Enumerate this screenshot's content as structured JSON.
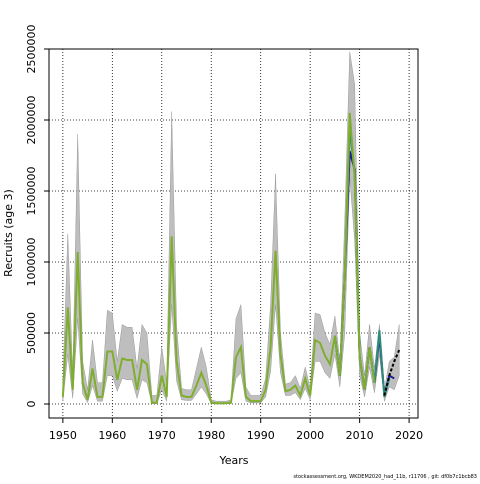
{
  "chart_data": {
    "type": "line",
    "xlabel": "Years",
    "ylabel": "Recruits (age 3)",
    "footer": "stockassessment.org, WKDEM2020_had_11b, r11706 , git: df0b7c1bcb83",
    "xlim": [
      1947.2,
      2021.8
    ],
    "ylim": [
      -98600,
      2500000
    ],
    "xticks": [
      1950,
      1960,
      1970,
      1980,
      1990,
      2000,
      2010,
      2020
    ],
    "yticks": [
      0,
      500000,
      1000000,
      1500000,
      2000000,
      2500000
    ],
    "grid": true,
    "band": {
      "color": "#bebebe",
      "x": [
        1950,
        1951,
        1952,
        1953,
        1954,
        1955,
        1956,
        1957,
        1958,
        1959,
        1960,
        1961,
        1962,
        1963,
        1964,
        1965,
        1966,
        1967,
        1968,
        1969,
        1970,
        1971,
        1972,
        1973,
        1974,
        1975,
        1976,
        1977,
        1978,
        1979,
        1980,
        1981,
        1982,
        1983,
        1984,
        1985,
        1986,
        1987,
        1988,
        1989,
        1990,
        1991,
        1992,
        1993,
        1994,
        1995,
        1996,
        1997,
        1998,
        1999,
        2000,
        2001,
        2002,
        2003,
        2004,
        2005,
        2006,
        2007,
        2008,
        2009,
        2010,
        2011,
        2012,
        2013,
        2014,
        2015,
        2016,
        2017,
        2018
      ],
      "upper": [
        150000,
        1200000,
        200000,
        1900000,
        300000,
        100000,
        450000,
        150000,
        150000,
        660000,
        640000,
        300000,
        560000,
        540000,
        540000,
        250000,
        560000,
        500000,
        60000,
        60000,
        400000,
        150000,
        2060000,
        550000,
        110000,
        100000,
        100000,
        250000,
        400000,
        260000,
        30000,
        20000,
        20000,
        20000,
        30000,
        600000,
        700000,
        120000,
        60000,
        60000,
        60000,
        180000,
        700000,
        1620000,
        500000,
        140000,
        150000,
        200000,
        110000,
        260000,
        110000,
        640000,
        630000,
        500000,
        420000,
        620000,
        300000,
        1300000,
        2480000,
        2250000,
        500000,
        200000,
        560000,
        250000,
        560000,
        100000,
        300000,
        330000,
        560000
      ],
      "lower": [
        20000,
        350000,
        40000,
        600000,
        70000,
        10000,
        130000,
        20000,
        20000,
        200000,
        200000,
        90000,
        180000,
        170000,
        170000,
        40000,
        170000,
        150000,
        2000,
        2000,
        100000,
        20000,
        700000,
        160000,
        30000,
        25000,
        25000,
        70000,
        120000,
        70000,
        3000,
        1000,
        1000,
        1000,
        3000,
        180000,
        220000,
        20000,
        8000,
        8000,
        8000,
        50000,
        230000,
        700000,
        220000,
        60000,
        60000,
        80000,
        30000,
        110000,
        30000,
        300000,
        300000,
        220000,
        180000,
        350000,
        120000,
        500000,
        1600000,
        1150000,
        200000,
        50000,
        260000,
        80000,
        350000,
        20000,
        120000,
        100000,
        200000
      ]
    },
    "series": [
      {
        "color": "#1b1b8f",
        "x": [
          2005,
          2006,
          2007,
          2008,
          2009,
          2010,
          2011,
          2012,
          2013,
          2014,
          2015,
          2016,
          2017
        ],
        "values": [
          480000,
          200000,
          900000,
          1780000,
          1650000,
          330000,
          100000,
          400000,
          150000,
          480000,
          60000,
          200000,
          180000
        ]
      },
      {
        "color": "#2e8b7a",
        "x": [
          2005,
          2006,
          2007,
          2008,
          2009,
          2010,
          2011,
          2012,
          2013,
          2014,
          2015,
          2016
        ],
        "values": [
          480000,
          200000,
          900000,
          1950000,
          1620000,
          330000,
          100000,
          400000,
          150000,
          520000,
          50000,
          180000
        ]
      },
      {
        "color": "#7fae2e",
        "x": [
          1950,
          1951,
          1952,
          1953,
          1954,
          1955,
          1956,
          1957,
          1958,
          1959,
          1960,
          1961,
          1962,
          1963,
          1964,
          1965,
          1966,
          1967,
          1968,
          1969,
          1970,
          1971,
          1972,
          1973,
          1974,
          1975,
          1976,
          1977,
          1978,
          1979,
          1980,
          1981,
          1982,
          1983,
          1984,
          1985,
          1986,
          1987,
          1988,
          1989,
          1990,
          1991,
          1992,
          1993,
          1994,
          1995,
          1996,
          1997,
          1998,
          1999,
          2000,
          2001,
          2002,
          2003,
          2004,
          2005,
          2006,
          2007,
          2008,
          2009,
          2010,
          2011,
          2012,
          2013
        ],
        "values": [
          50000,
          680000,
          100000,
          1070000,
          150000,
          30000,
          250000,
          50000,
          50000,
          370000,
          370000,
          170000,
          320000,
          310000,
          310000,
          100000,
          310000,
          280000,
          10000,
          10000,
          200000,
          50000,
          1180000,
          300000,
          60000,
          50000,
          50000,
          130000,
          220000,
          130000,
          10000,
          5000,
          5000,
          5000,
          10000,
          330000,
          400000,
          50000,
          20000,
          20000,
          20000,
          100000,
          400000,
          1080000,
          350000,
          90000,
          100000,
          130000,
          60000,
          180000,
          60000,
          450000,
          430000,
          340000,
          280000,
          480000,
          200000,
          900000,
          2050000,
          1600000,
          330000,
          100000,
          400000,
          150000
        ]
      },
      {
        "color": "#000000",
        "dash": true,
        "x": [
          2015,
          2016,
          2017,
          2018
        ],
        "values": [
          60000,
          200000,
          300000,
          380000
        ]
      }
    ]
  }
}
